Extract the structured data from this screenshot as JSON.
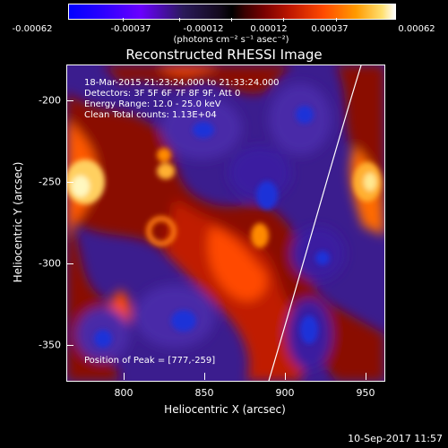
{
  "colorbar": {
    "ticks": [
      "-0.00062",
      "-0.00037",
      "-0.00012",
      "0.00012",
      "0.00037",
      "0.00062"
    ],
    "unit": "(photons cm⁻² s⁻¹ asec⁻²)"
  },
  "title": "Reconstructed RHESSI Image",
  "info": {
    "time": "18-Mar-2015 21:23:24.000 to 21:33:24.000",
    "detectors": "Detectors: 3F 5F 6F 7F 8F 9F, Att 0",
    "energy": "Energy Range: 12.0 - 25.0 keV",
    "clean": "Clean      Total counts: 1.13E+04",
    "peak": "Position of Peak = [777,-259]"
  },
  "axes": {
    "x_label": "Heliocentric X (arcsec)",
    "y_label": "Heliocentric Y (arcsec)",
    "x_ticks": [
      "800",
      "850",
      "900",
      "950"
    ],
    "y_ticks": [
      "-200",
      "-250",
      "-300",
      "-350"
    ]
  },
  "timestamp": "10-Sep-2017 11:57"
}
